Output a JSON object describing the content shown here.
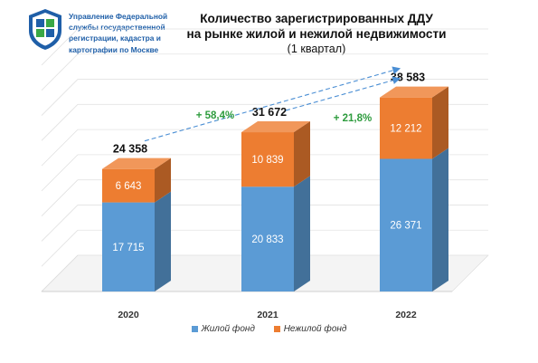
{
  "header": {
    "org_lines": [
      "Управление Федеральной",
      "службы государственной",
      "регистрации, кадастра и",
      "картографии по Москве"
    ],
    "title_lines": [
      "Количество зарегистрированных ДДУ",
      "на рынке жилой и нежилой недвижимости"
    ],
    "subtitle": "(1 квартал)"
  },
  "colors": {
    "residential": "#5b9bd5",
    "nonresidential": "#ed7d31",
    "trend": "#4a8ed4",
    "growth_text": "#2e9c3e",
    "logo_blue": "#1f5fa8",
    "logo_green": "#3aa845"
  },
  "chart_data": {
    "type": "bar",
    "stacked": true,
    "categories": [
      "2020",
      "2021",
      "2022"
    ],
    "series": [
      {
        "name": "Жилой фонд",
        "values": [
          17715,
          20833,
          26371
        ],
        "labels": [
          "17 715",
          "20 833",
          "26 371"
        ]
      },
      {
        "name": "Нежилой фонд",
        "values": [
          6643,
          10839,
          12212
        ],
        "labels": [
          "6 643",
          "10 839",
          "12 212"
        ]
      }
    ],
    "totals": [
      24358,
      31672,
      38583
    ],
    "total_labels": [
      "24 358",
      "31 672",
      "38 583"
    ],
    "growth": [
      {
        "from": "2020",
        "to": "2022",
        "label": "+ 58,4%"
      },
      {
        "from": "2021",
        "to": "2022",
        "label": "+ 21,8%"
      }
    ],
    "ylim": [
      0,
      45000
    ],
    "grid": true,
    "legend_position": "bottom"
  }
}
